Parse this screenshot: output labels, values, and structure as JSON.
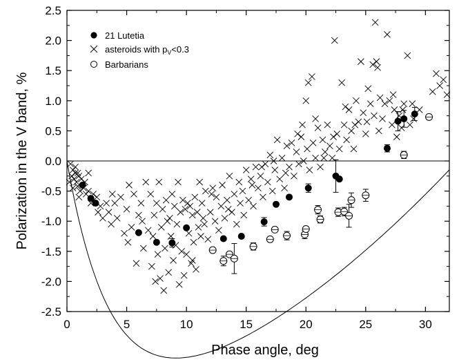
{
  "chart_data": {
    "type": "scatter",
    "xlabel": "Phase angle, deg",
    "ylabel": "Polarization in the V band, %",
    "xlim": [
      0,
      32
    ],
    "ylim": [
      -2.5,
      2.5
    ],
    "x_ticks": [
      "0",
      "5",
      "10",
      "15",
      "20",
      "25",
      "30"
    ],
    "y_ticks": [
      "-2.5",
      "-2.0",
      "-1.5",
      "-1.0",
      "-0.5",
      "0.0",
      "0.5",
      "1.0",
      "1.5",
      "2.0",
      "2.5"
    ],
    "grid": false,
    "legend_position": "top-left",
    "legend": {
      "lutetia": "21 Lutetia",
      "asteroids_prefix": "asteroids with p",
      "asteroids_sub": "V",
      "asteroids_suffix": "<0.3",
      "barbarians": "Barbarians"
    },
    "zero_line": 0,
    "series": [
      {
        "name": "21 Lutetia",
        "marker": "filled-circle",
        "points": [
          [
            1.3,
            -0.4,
            0
          ],
          [
            2.0,
            -0.62,
            0
          ],
          [
            2.4,
            -0.7,
            0
          ],
          [
            6.0,
            -1.19,
            0
          ],
          [
            7.5,
            -1.35,
            0
          ],
          [
            8.8,
            -1.36,
            0.07
          ],
          [
            10.0,
            -1.11,
            0
          ],
          [
            13.1,
            -1.29,
            0
          ],
          [
            14.6,
            -1.25,
            0
          ],
          [
            16.5,
            -1.01,
            0.07
          ],
          [
            17.5,
            -0.72,
            0
          ],
          [
            18.6,
            -0.6,
            0
          ],
          [
            20.2,
            -0.45,
            0.07
          ],
          [
            22.5,
            -0.25,
            0.27
          ],
          [
            22.8,
            -0.3,
            0
          ],
          [
            26.8,
            0.21,
            0.06
          ],
          [
            27.7,
            0.66,
            0.16
          ],
          [
            28.2,
            0.7,
            0.14
          ],
          [
            29.1,
            0.78,
            0.11
          ]
        ]
      },
      {
        "name": "asteroids with pV<0.3",
        "marker": "cross",
        "points": [
          [
            0.3,
            -0.05
          ],
          [
            0.4,
            -0.25
          ],
          [
            0.5,
            -0.15
          ],
          [
            0.6,
            -0.3
          ],
          [
            0.7,
            -0.1
          ],
          [
            0.8,
            -0.35
          ],
          [
            0.9,
            -0.42
          ],
          [
            1.0,
            -0.25
          ],
          [
            1.1,
            -0.5
          ],
          [
            1.2,
            -0.3
          ],
          [
            0.2,
            -0.35
          ],
          [
            0.5,
            -0.45
          ],
          [
            0.7,
            -0.2
          ],
          [
            1.0,
            -0.6
          ],
          [
            1.4,
            -0.45
          ],
          [
            1.5,
            -0.35
          ],
          [
            1.6,
            -0.55
          ],
          [
            1.8,
            -0.5
          ],
          [
            2.0,
            -0.7
          ],
          [
            2.2,
            -0.55
          ],
          [
            2.5,
            -0.6
          ],
          [
            2.8,
            -0.75
          ],
          [
            3.0,
            -0.95
          ],
          [
            3.3,
            -0.7
          ],
          [
            3.5,
            -0.85
          ],
          [
            3.7,
            -1.05
          ],
          [
            4.0,
            -0.7
          ],
          [
            4.2,
            -0.95
          ],
          [
            4.5,
            -0.6
          ],
          [
            4.8,
            -1.2
          ],
          [
            5.0,
            -0.8
          ],
          [
            5.2,
            -0.4
          ],
          [
            5.4,
            -1.1
          ],
          [
            5.6,
            -0.55
          ],
          [
            5.8,
            -1.7
          ],
          [
            6.0,
            -0.9
          ],
          [
            6.2,
            -0.7
          ],
          [
            6.4,
            -1.45
          ],
          [
            6.6,
            -0.35
          ],
          [
            6.8,
            -1.15
          ],
          [
            7.0,
            -0.55
          ],
          [
            7.1,
            -1.75
          ],
          [
            7.3,
            -0.9
          ],
          [
            7.4,
            -2.0
          ],
          [
            7.5,
            -0.7
          ],
          [
            7.6,
            -1.55
          ],
          [
            7.7,
            -0.35
          ],
          [
            7.8,
            -1.95
          ],
          [
            7.9,
            -1.1
          ],
          [
            8.0,
            -0.8
          ],
          [
            8.1,
            -2.15
          ],
          [
            8.2,
            -1.45
          ],
          [
            8.3,
            -0.65
          ],
          [
            8.5,
            -1.85
          ],
          [
            8.6,
            -0.95
          ],
          [
            8.7,
            -1.25
          ],
          [
            8.8,
            -0.55
          ],
          [
            8.9,
            -1.65
          ],
          [
            9.0,
            -0.75
          ],
          [
            9.2,
            -1.05
          ],
          [
            9.3,
            -0.35
          ],
          [
            9.4,
            -2.05
          ],
          [
            9.5,
            -0.85
          ],
          [
            9.6,
            -1.5
          ],
          [
            9.7,
            -0.65
          ],
          [
            9.8,
            -1.9
          ],
          [
            9.9,
            -0.8
          ],
          [
            10.0,
            -1.55
          ],
          [
            10.1,
            -0.7
          ],
          [
            10.2,
            -1.2
          ],
          [
            10.3,
            -0.75
          ],
          [
            10.4,
            -1.7
          ],
          [
            10.5,
            -0.9
          ],
          [
            10.6,
            -1.35
          ],
          [
            10.7,
            -0.6
          ],
          [
            10.8,
            -1.8
          ],
          [
            10.9,
            -0.85
          ],
          [
            11.0,
            -1.1
          ],
          [
            11.1,
            -0.35
          ],
          [
            11.2,
            -1.25
          ],
          [
            11.3,
            -0.7
          ],
          [
            11.5,
            -1.05
          ],
          [
            11.6,
            -0.5
          ],
          [
            11.8,
            -1.3
          ],
          [
            12.0,
            -0.85
          ],
          [
            12.2,
            -0.45
          ],
          [
            12.4,
            -1.0
          ],
          [
            12.5,
            -0.6
          ],
          [
            12.7,
            -1.15
          ],
          [
            12.9,
            -0.75
          ],
          [
            13.0,
            -0.4
          ],
          [
            13.2,
            -0.95
          ],
          [
            13.4,
            -0.65
          ],
          [
            13.6,
            -0.25
          ],
          [
            13.8,
            -0.85
          ],
          [
            14.0,
            -0.55
          ],
          [
            14.2,
            -1.05
          ],
          [
            14.4,
            -0.35
          ],
          [
            14.5,
            -0.7
          ],
          [
            14.7,
            -0.5
          ],
          [
            15.0,
            -0.15
          ],
          [
            15.2,
            -0.65
          ],
          [
            15.4,
            -0.3
          ],
          [
            15.6,
            -0.75
          ],
          [
            15.8,
            -0.1
          ],
          [
            16.0,
            -0.45
          ],
          [
            16.2,
            -0.25
          ],
          [
            16.4,
            -0.6
          ],
          [
            16.6,
            -0.05
          ],
          [
            16.8,
            -0.35
          ],
          [
            17.0,
            0.1
          ],
          [
            17.2,
            -0.5
          ],
          [
            17.4,
            -0.15
          ],
          [
            17.6,
            0.35
          ],
          [
            17.8,
            -0.3
          ],
          [
            18.0,
            0.05
          ],
          [
            18.2,
            -0.45
          ],
          [
            18.4,
            0.25
          ],
          [
            18.6,
            -0.1
          ],
          [
            18.8,
            0.3
          ],
          [
            19.0,
            -0.25
          ],
          [
            19.2,
            0.15
          ],
          [
            19.4,
            -0.05
          ],
          [
            19.6,
            0.4
          ],
          [
            19.8,
            0.0
          ],
          [
            20.0,
            1.0
          ],
          [
            20.1,
            0.2
          ],
          [
            20.2,
            1.3
          ],
          [
            20.3,
            -0.15
          ],
          [
            20.5,
            1.4
          ],
          [
            20.6,
            0.3
          ],
          [
            20.8,
            0.05
          ],
          [
            21.0,
            0.55
          ],
          [
            21.2,
            -0.1
          ],
          [
            21.4,
            0.35
          ],
          [
            21.6,
            0.15
          ],
          [
            21.8,
            0.6
          ],
          [
            22.0,
            0.25
          ],
          [
            22.2,
            0.05
          ],
          [
            22.4,
            2.0
          ],
          [
            22.6,
            0.45
          ],
          [
            22.8,
            0.2
          ],
          [
            23.0,
            1.3
          ],
          [
            23.2,
            0.6
          ],
          [
            23.4,
            0.35
          ],
          [
            23.6,
            0.85
          ],
          [
            23.8,
            0.5
          ],
          [
            24.0,
            0.2
          ],
          [
            24.2,
            1.0
          ],
          [
            24.4,
            0.65
          ],
          [
            24.6,
            1.65
          ],
          [
            24.8,
            0.8
          ],
          [
            25.0,
            0.45
          ],
          [
            25.2,
            1.2
          ],
          [
            25.4,
            0.95
          ],
          [
            25.6,
            1.6
          ],
          [
            25.7,
            0.75
          ],
          [
            25.8,
            2.3
          ],
          [
            25.9,
            1.65
          ],
          [
            26.0,
            1.55
          ],
          [
            26.2,
            1.05
          ],
          [
            26.4,
            0.7
          ],
          [
            26.6,
            0.95
          ],
          [
            26.8,
            2.1
          ],
          [
            27.0,
            1.0
          ],
          [
            27.2,
            0.6
          ],
          [
            27.4,
            0.85
          ],
          [
            27.6,
            0.4
          ],
          [
            27.8,
            0.75
          ],
          [
            28.0,
            0.55
          ],
          [
            28.2,
            0.95
          ],
          [
            28.5,
            1.75
          ],
          [
            28.7,
            0.6
          ],
          [
            28.9,
            0.95
          ],
          [
            30.6,
            1.15
          ],
          [
            30.9,
            1.45
          ],
          [
            31.2,
            1.25
          ],
          [
            31.5,
            1.35
          ],
          [
            31.8,
            1.1
          ],
          [
            29.5,
            0.85
          ],
          [
            0.9,
            -0.2
          ],
          [
            1.8,
            -0.2
          ],
          [
            2.6,
            -0.85
          ],
          [
            3.8,
            -0.55
          ],
          [
            5.1,
            -1.35
          ],
          [
            6.3,
            -1.0
          ],
          [
            7.2,
            -1.25
          ],
          [
            8.4,
            -1.0
          ],
          [
            9.1,
            -1.4
          ],
          [
            10.5,
            -1.65
          ],
          [
            11.4,
            -0.95
          ],
          [
            12.1,
            -0.55
          ],
          [
            13.5,
            -0.8
          ],
          [
            14.8,
            -0.9
          ],
          [
            15.5,
            -0.4
          ],
          [
            16.3,
            -0.1
          ],
          [
            17.3,
            0.0
          ],
          [
            18.3,
            -0.2
          ],
          [
            19.3,
            0.45
          ],
          [
            19.7,
            0.6
          ],
          [
            20.8,
            0.7
          ],
          [
            21.5,
            0.05
          ],
          [
            22.3,
            0.4
          ],
          [
            23.3,
            0.9
          ],
          [
            24.1,
            0.6
          ],
          [
            25.1,
            0.65
          ],
          [
            26.1,
            0.5
          ],
          [
            27.3,
            1.1
          ],
          [
            28.1,
            0.85
          ],
          [
            29.0,
            0.7
          ]
        ]
      },
      {
        "name": "Barbarians",
        "marker": "open-circle",
        "points": [
          [
            12.2,
            -1.48,
            0
          ],
          [
            13.1,
            -1.66,
            0.08
          ],
          [
            13.6,
            -1.55,
            0
          ],
          [
            14.0,
            -1.62,
            0.25
          ],
          [
            15.6,
            -1.42,
            0.06
          ],
          [
            17.0,
            -1.3,
            0
          ],
          [
            17.4,
            -1.14,
            0
          ],
          [
            18.4,
            -1.24,
            0.07
          ],
          [
            19.9,
            -1.22,
            0.07
          ],
          [
            20.0,
            -1.13,
            0
          ],
          [
            21.0,
            -0.81,
            0.07
          ],
          [
            21.2,
            -0.97,
            0.06
          ],
          [
            22.7,
            -0.85,
            0.07
          ],
          [
            23.2,
            -0.84,
            0.07
          ],
          [
            23.6,
            -0.91,
            0.19
          ],
          [
            23.8,
            -0.65,
            0.12
          ],
          [
            25.0,
            -0.57,
            0.1
          ],
          [
            28.2,
            0.1,
            0.06
          ],
          [
            30.3,
            0.73,
            0
          ]
        ]
      }
    ]
  }
}
